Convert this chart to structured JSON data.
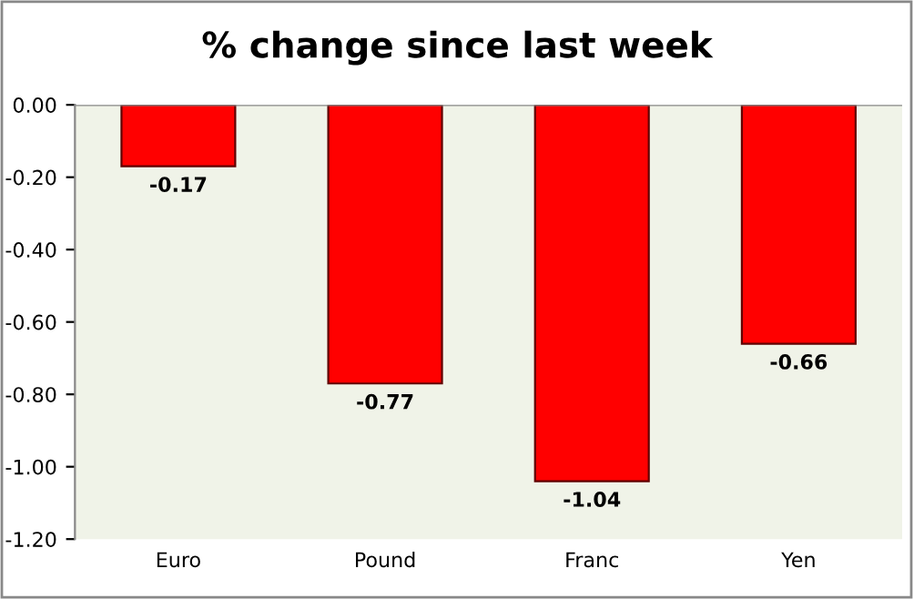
{
  "chart_data": {
    "type": "bar",
    "title": "% change since last week",
    "categories": [
      "Euro",
      "Pound",
      "Franc",
      "Yen"
    ],
    "values": [
      -0.17,
      -0.77,
      -1.04,
      -0.66
    ],
    "color": "#ff0000",
    "ylim": [
      -1.2,
      0
    ],
    "yticks": [
      {
        "value": 0,
        "label": "0.00"
      },
      {
        "value": -0.2,
        "label": "-0.20"
      },
      {
        "value": -0.4,
        "label": "-0.40"
      },
      {
        "value": -0.6,
        "label": "-0.60"
      },
      {
        "value": -0.8,
        "label": "-0.80"
      },
      {
        "value": -1.0,
        "label": "-1.00"
      },
      {
        "value": -1.2,
        "label": "-1.20"
      }
    ],
    "data_labels": true,
    "grid": false,
    "legend": false
  }
}
